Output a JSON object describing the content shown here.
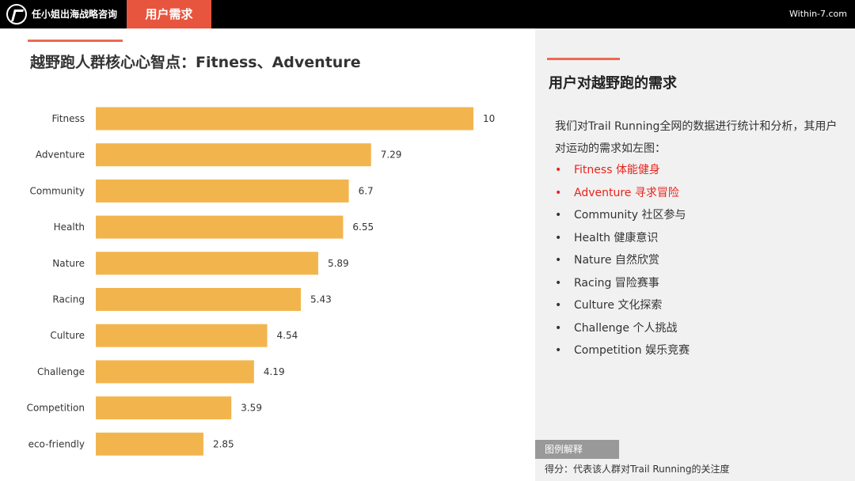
{
  "header": {
    "brand": "任小姐出海战略咨询",
    "active_tab": "用户需求",
    "site": "Within-7.com",
    "logo_icon": "logo-icon"
  },
  "chart_data": {
    "type": "bar",
    "orientation": "horizontal",
    "title": "越野跑人群核心心智点：Fitness、Adventure",
    "categories": [
      "Fitness",
      "Adventure",
      "Community",
      "Health",
      "Nature",
      "Racing",
      "Culture",
      "Challenge",
      "Competition",
      "eco-friendly"
    ],
    "values": [
      10,
      7.29,
      6.7,
      6.55,
      5.89,
      5.43,
      4.54,
      4.19,
      3.59,
      2.85
    ],
    "value_labels": [
      "10",
      "7.29",
      "6.7",
      "6.55",
      "5.89",
      "5.43",
      "4.54",
      "4.19",
      "3.59",
      "2.85"
    ],
    "xlim": [
      0,
      10
    ],
    "grid": false,
    "bar_color": "#f2b54e"
  },
  "right": {
    "heading": "用户对越野跑的需求",
    "intro": "我们对Trail Running全网的数据进行统计和分析，其用户对运动的需求如左图：",
    "bullets": [
      {
        "text": "Fitness 体能健身",
        "highlight": true
      },
      {
        "text": "Adventure 寻求冒险",
        "highlight": true
      },
      {
        "text": "Community 社区参与",
        "highlight": false
      },
      {
        "text": "Health  健康意识",
        "highlight": false
      },
      {
        "text": "Nature 自然欣赏",
        "highlight": false
      },
      {
        "text": "Racing 冒险赛事",
        "highlight": false
      },
      {
        "text": "Culture 文化探索",
        "highlight": false
      },
      {
        "text": "Challenge 个人挑战",
        "highlight": false
      },
      {
        "text": "Competition 娱乐竞赛",
        "highlight": false
      }
    ],
    "bullet_symbol": "•",
    "legend_tag": "图例解释",
    "legend_note": "得分：代表该人群对Trail Running的关注度"
  },
  "colors": {
    "accent": "#e8553e",
    "highlight_text": "#e8231c",
    "bar": "#f2b54e"
  }
}
